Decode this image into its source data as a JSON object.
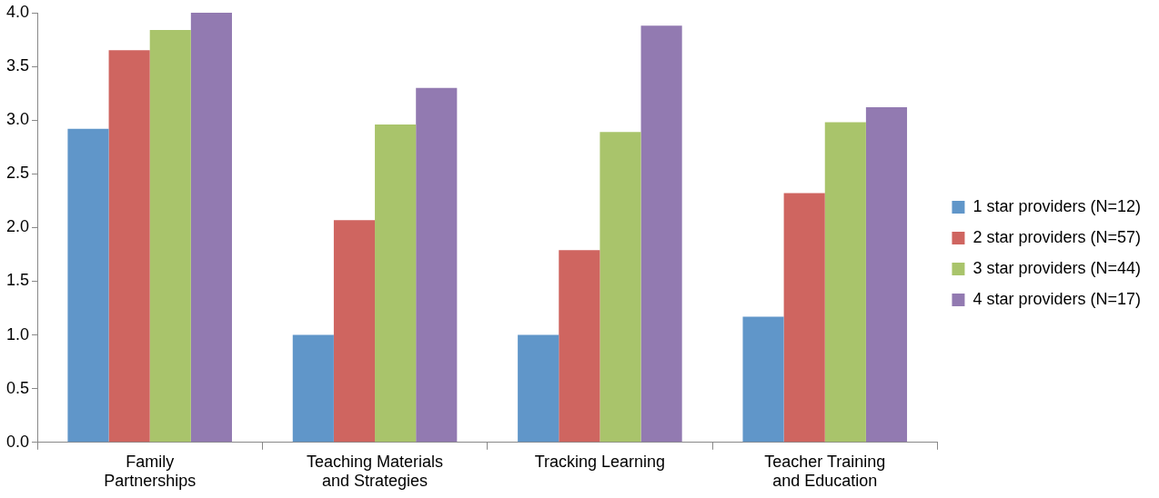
{
  "chart_data": {
    "type": "bar",
    "categories": [
      "Family Partnerships",
      "Teaching Materials and Strategies",
      "Tracking Learning",
      "Teacher Training and Education"
    ],
    "series": [
      {
        "name": "1 star providers (N=12)",
        "color": "#6096c9",
        "values": [
          2.92,
          1.0,
          1.0,
          1.17
        ]
      },
      {
        "name": "2 star providers (N=57)",
        "color": "#cf6560",
        "values": [
          3.65,
          2.07,
          1.79,
          2.32
        ]
      },
      {
        "name": "3 star providers (N=44)",
        "color": "#a9c46b",
        "values": [
          3.84,
          2.96,
          2.89,
          2.98
        ]
      },
      {
        "name": "4 star providers (N=17)",
        "color": "#927ab1",
        "values": [
          4.0,
          3.3,
          3.88,
          3.12
        ]
      }
    ],
    "ylim": [
      0,
      4
    ],
    "yticks": [
      {
        "value": 0,
        "label": "0.0"
      },
      {
        "value": 0.5,
        "label": "0.5"
      },
      {
        "value": 1,
        "label": "1.0"
      },
      {
        "value": 1.5,
        "label": "1.5"
      },
      {
        "value": 2,
        "label": "2.0"
      },
      {
        "value": 2.5,
        "label": "2.5"
      },
      {
        "value": 3,
        "label": "3.0"
      },
      {
        "value": 3.5,
        "label": "3.5"
      },
      {
        "value": 4,
        "label": "4.0"
      }
    ],
    "legend": "right"
  }
}
